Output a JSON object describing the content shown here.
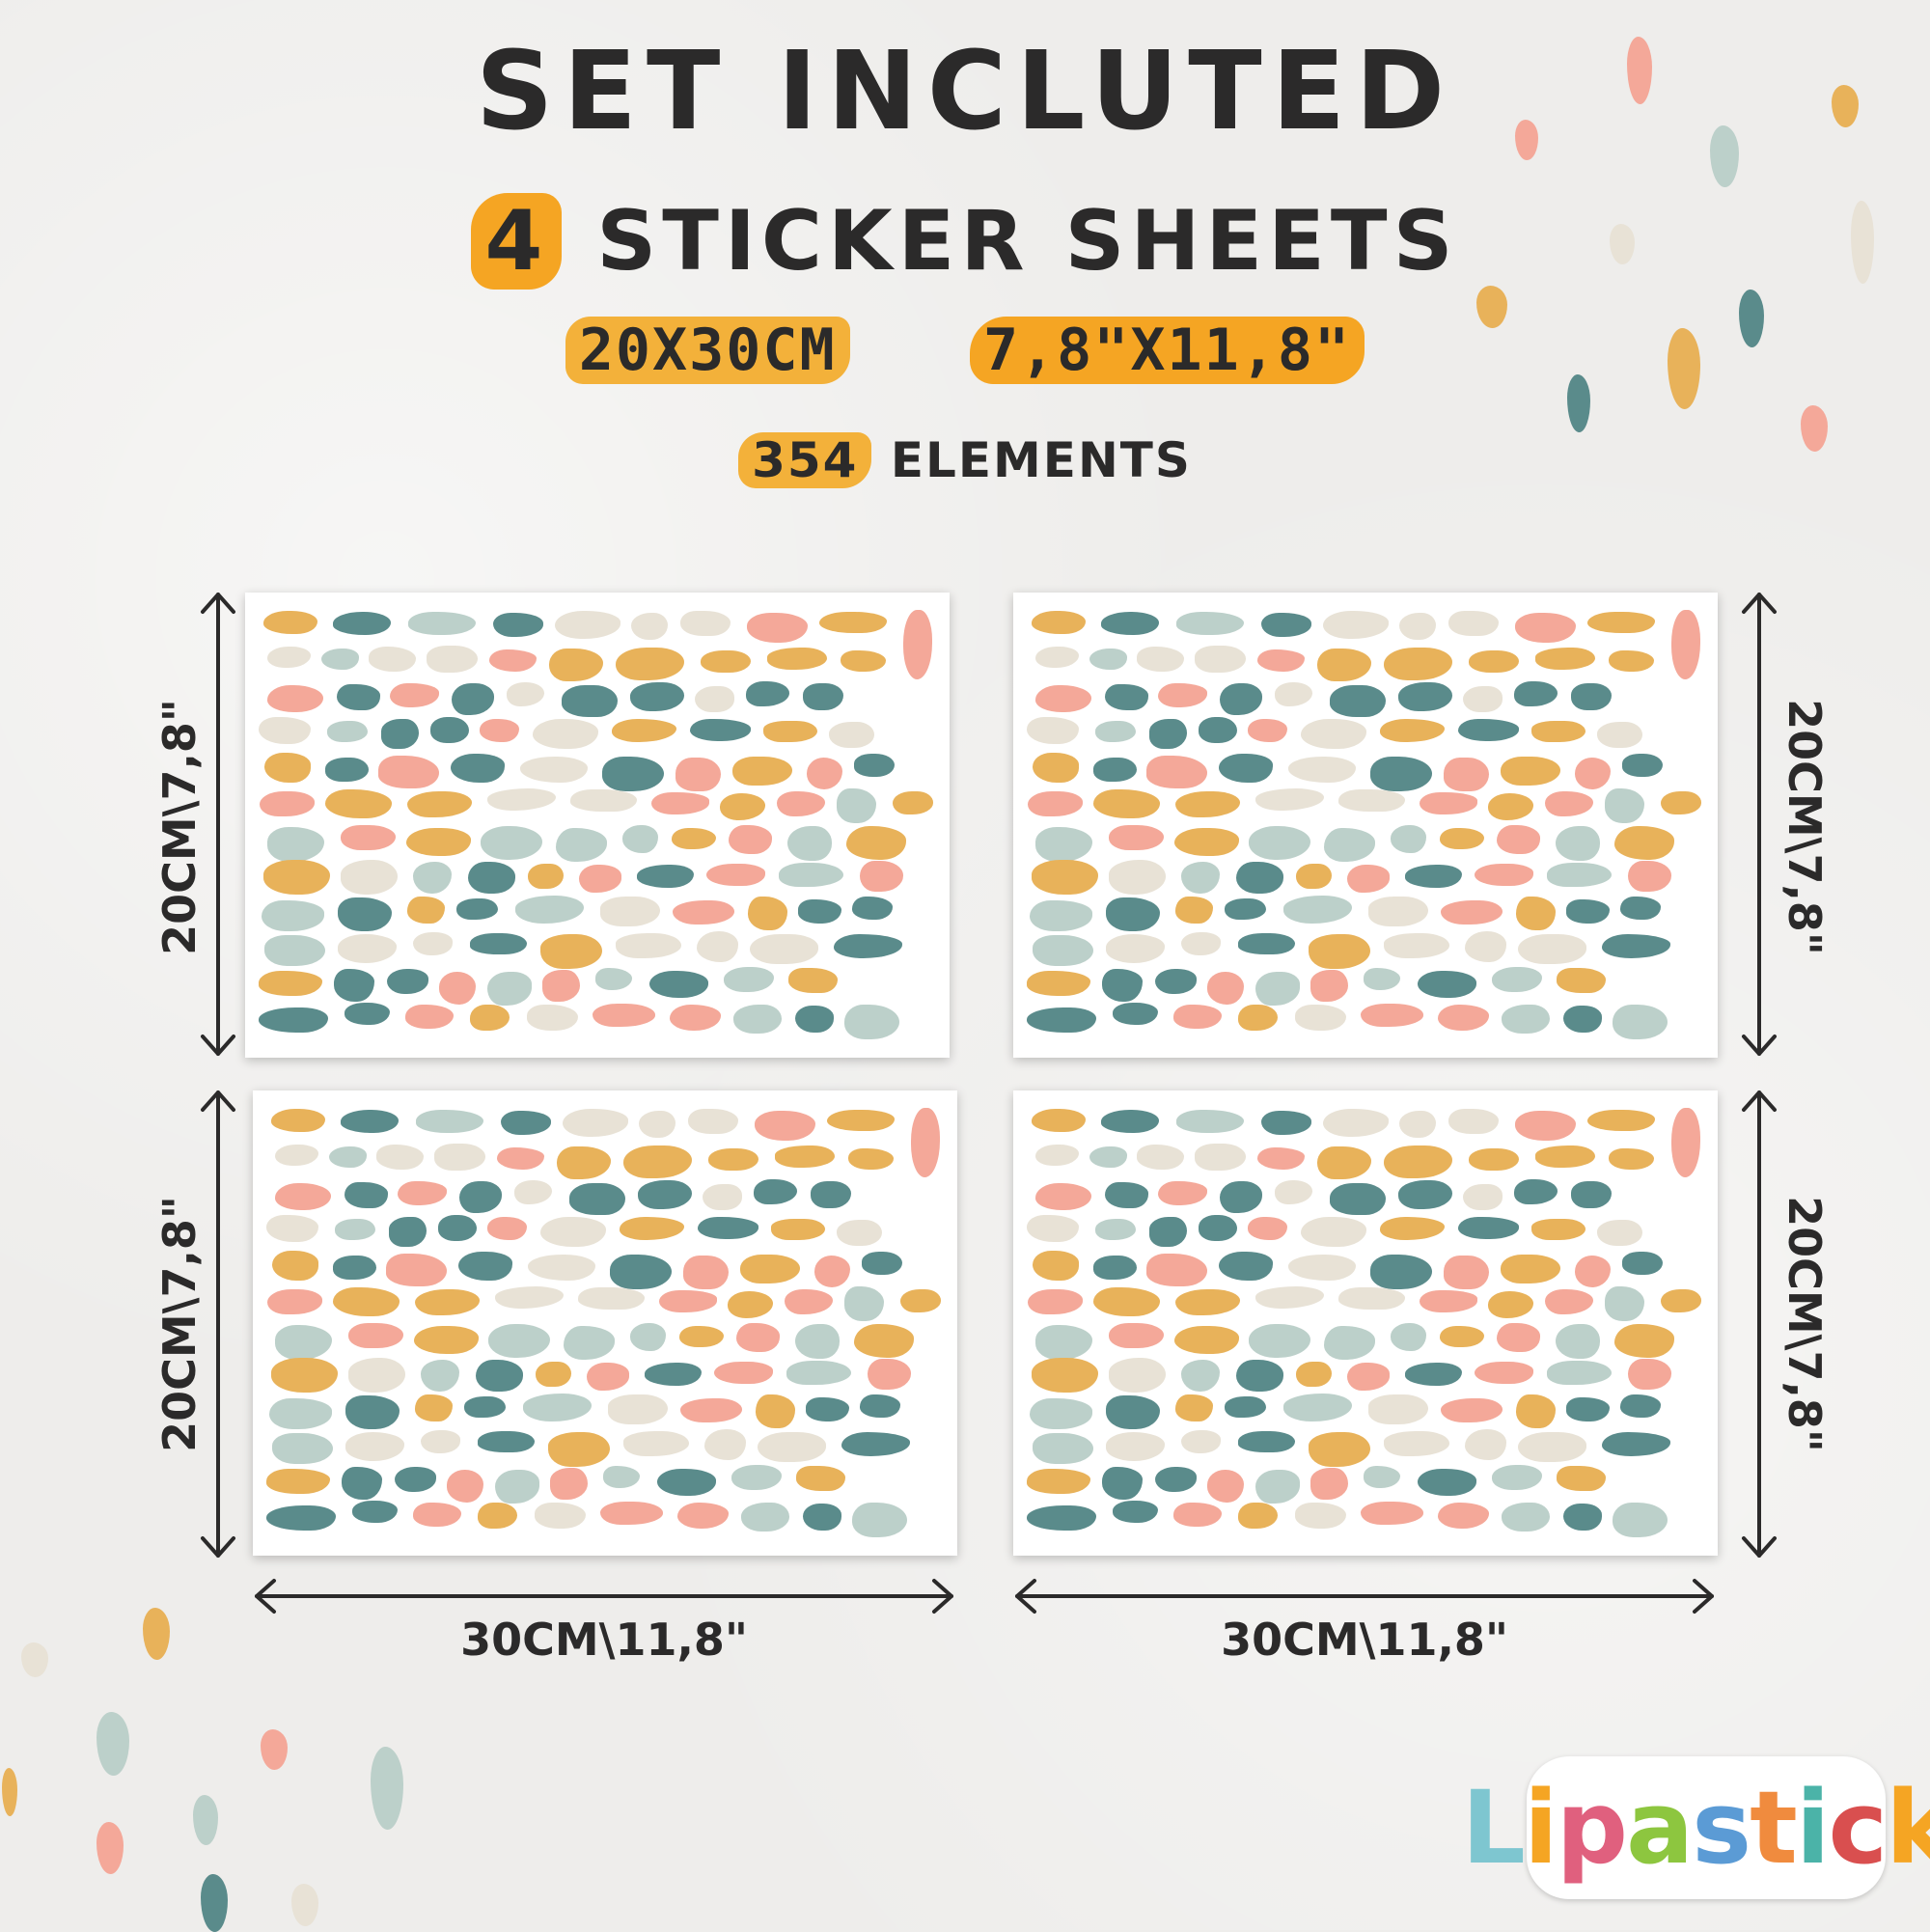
{
  "title": "SET INCLUTED",
  "count": {
    "number": "4",
    "label": "STICKER SHEETS"
  },
  "size": {
    "metric": "20X30CM",
    "imperial": "7,8\"X11,8\""
  },
  "elements": {
    "number": "354",
    "label": "ELEMENTS"
  },
  "dimensions": {
    "height": "20CM\\7,8\"",
    "width": "30CM\\11,8\""
  },
  "logo": {
    "text": "Lipastick"
  },
  "colors": {
    "background": "#eeedeb",
    "highlight": "#f5a523",
    "text": "#2b2a2a",
    "palette": {
      "pink": "#f4a899",
      "teal": "#5a8b8b",
      "mustard": "#e8b25a",
      "cream": "#e8e2d6",
      "sage": "#bcd0ca"
    },
    "logo_letters": [
      "#7ec6d0",
      "#f5a523",
      "#e0607e",
      "#8dc63f",
      "#5b9bd5",
      "#f08b3e",
      "#4bb3a8",
      "#d94f4f",
      "#f5a523"
    ]
  }
}
